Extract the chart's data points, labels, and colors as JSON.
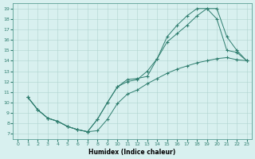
{
  "xlabel": "Humidex (Indice chaleur)",
  "xlim": [
    -0.5,
    23.5
  ],
  "ylim": [
    6.5,
    19.5
  ],
  "xticks": [
    0,
    1,
    2,
    3,
    4,
    5,
    6,
    7,
    8,
    9,
    10,
    11,
    12,
    13,
    14,
    15,
    16,
    17,
    18,
    19,
    20,
    21,
    22,
    23
  ],
  "yticks": [
    7,
    8,
    9,
    10,
    11,
    12,
    13,
    14,
    15,
    16,
    17,
    18,
    19
  ],
  "line_color": "#2e7d6e",
  "background_color": "#d8f0ef",
  "curve1_x": [
    1,
    2,
    3,
    4,
    5,
    6,
    7,
    8,
    9,
    10,
    11,
    12,
    13,
    14,
    15,
    16,
    17,
    18,
    19,
    20,
    21,
    22,
    23
  ],
  "curve1_y": [
    10.5,
    9.3,
    8.5,
    8.2,
    7.7,
    7.4,
    7.2,
    7.3,
    8.4,
    9.9,
    10.8,
    11.2,
    11.8,
    12.3,
    12.8,
    13.2,
    13.5,
    13.8,
    14.0,
    14.2,
    14.3,
    14.1,
    14.0
  ],
  "curve2_x": [
    1,
    2,
    3,
    4,
    5,
    6,
    7,
    8,
    9,
    10,
    11,
    12,
    13,
    14,
    15,
    16,
    17,
    18,
    19,
    20,
    21,
    22,
    23
  ],
  "curve2_y": [
    10.5,
    9.3,
    8.5,
    8.2,
    7.7,
    7.4,
    7.2,
    8.4,
    10.0,
    11.5,
    12.2,
    12.3,
    12.5,
    14.2,
    15.8,
    16.6,
    17.4,
    18.3,
    19.0,
    18.0,
    15.0,
    14.8,
    14.0
  ],
  "curve3_x": [
    1,
    2,
    3,
    4,
    5,
    6,
    7,
    8,
    9,
    10,
    11,
    12,
    13,
    14,
    15,
    16,
    17,
    18,
    19,
    20,
    21,
    22,
    23
  ],
  "curve3_y": [
    10.5,
    9.3,
    8.5,
    8.2,
    7.7,
    7.4,
    7.2,
    8.4,
    10.0,
    11.5,
    12.0,
    12.2,
    13.0,
    14.2,
    16.3,
    17.4,
    18.3,
    19.0,
    19.0,
    19.0,
    16.3,
    15.0,
    14.0
  ]
}
